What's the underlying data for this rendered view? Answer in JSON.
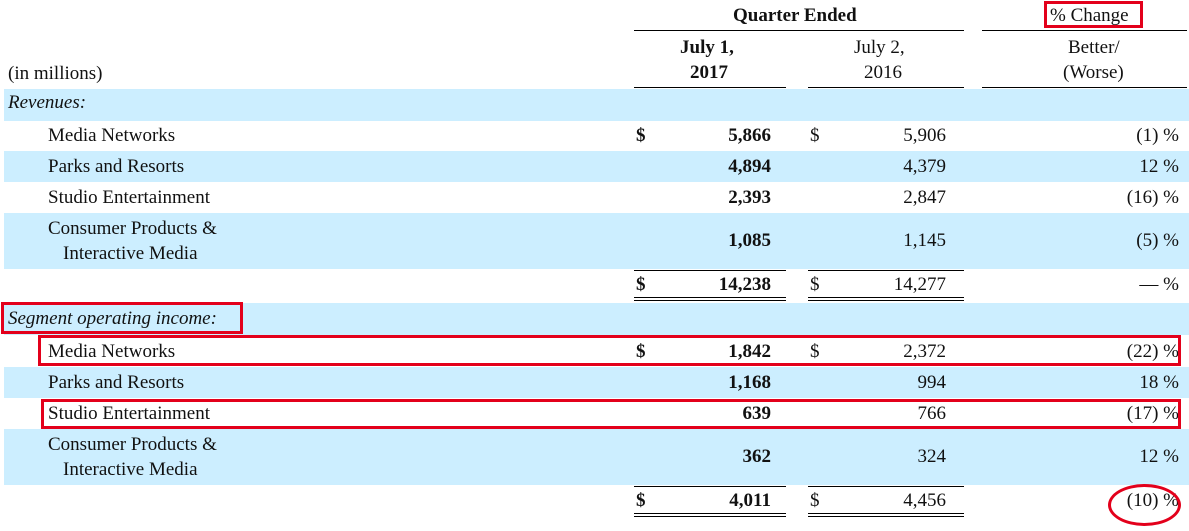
{
  "header": {
    "quarter_ended": "Quarter Ended",
    "pct_change": "% Change",
    "col1_line1": "July 1,",
    "col1_line2": "2017",
    "col2_line1": "July 2,",
    "col2_line2": "2016",
    "col3_line1": "Better/",
    "col3_line2": "(Worse)",
    "units": "(in millions)"
  },
  "revenues": {
    "label": "Revenues:",
    "rows": [
      {
        "name": "Media Networks",
        "cur1": "$",
        "v2017": "5,866",
        "cur2": "$",
        "v2016": "5,906",
        "change": "(1) %"
      },
      {
        "name": "Parks and Resorts",
        "cur1": "",
        "v2017": "4,894",
        "cur2": "",
        "v2016": "4,379",
        "change": "12 %"
      },
      {
        "name": "Studio Entertainment",
        "cur1": "",
        "v2017": "2,393",
        "cur2": "",
        "v2016": "2,847",
        "change": "(16) %"
      },
      {
        "name_line1": "Consumer Products &",
        "name_line2": "Interactive Media",
        "cur1": "",
        "v2017": "1,085",
        "cur2": "",
        "v2016": "1,145",
        "change": "(5) %"
      }
    ],
    "total": {
      "cur1": "$",
      "v2017": "14,238",
      "cur2": "$",
      "v2016": "14,277",
      "change": "— %"
    }
  },
  "segment": {
    "label": "Segment operating income:",
    "rows": [
      {
        "name": "Media Networks",
        "cur1": "$",
        "v2017": "1,842",
        "cur2": "$",
        "v2016": "2,372",
        "change": "(22) %"
      },
      {
        "name": "Parks and Resorts",
        "cur1": "",
        "v2017": "1,168",
        "cur2": "",
        "v2016": "994",
        "change": "18 %"
      },
      {
        "name": "Studio Entertainment",
        "cur1": "",
        "v2017": "639",
        "cur2": "",
        "v2016": "766",
        "change": "(17) %"
      },
      {
        "name_line1": "Consumer Products &",
        "name_line2": "Interactive Media",
        "cur1": "",
        "v2017": "362",
        "cur2": "",
        "v2016": "324",
        "change": "12 %"
      }
    ],
    "total": {
      "cur1": "$",
      "v2017": "4,011",
      "cur2": "$",
      "v2016": "4,456",
      "change": "(10) %"
    }
  },
  "colors": {
    "band": "#cceeff",
    "highlight": "#e3001b"
  }
}
